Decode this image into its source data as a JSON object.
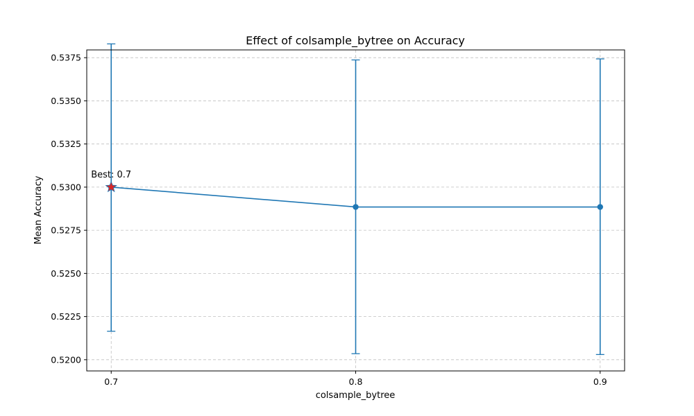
{
  "chart_data": {
    "type": "line",
    "title": "Effect of colsample_bytree on Accuracy",
    "xlabel": "colsample_bytree",
    "ylabel": "Mean Accuracy",
    "x": [
      0.7,
      0.8,
      0.9
    ],
    "x_tick_labels": [
      "0.7",
      "0.8",
      "0.9"
    ],
    "series": [
      {
        "values": [
          0.53,
          0.52885,
          0.52885
        ],
        "error_lower": [
          0.52165,
          0.52035,
          0.5203
        ],
        "error_upper": [
          0.5383,
          0.53737,
          0.53743
        ],
        "color": "#1f77b4"
      }
    ],
    "ylim": [
      0.51935,
      0.53795
    ],
    "y_ticks": [
      0.52,
      0.5225,
      0.525,
      0.5275,
      0.53,
      0.5325,
      0.535,
      0.5375
    ],
    "y_tick_labels": [
      "0.5200",
      "0.5225",
      "0.5250",
      "0.5275",
      "0.5300",
      "0.5325",
      "0.5350",
      "0.5375"
    ],
    "grid": true,
    "best": {
      "x": 0.7,
      "y": 0.53,
      "label": "Best: 0.7",
      "marker": "star",
      "color": "#d62728"
    }
  }
}
